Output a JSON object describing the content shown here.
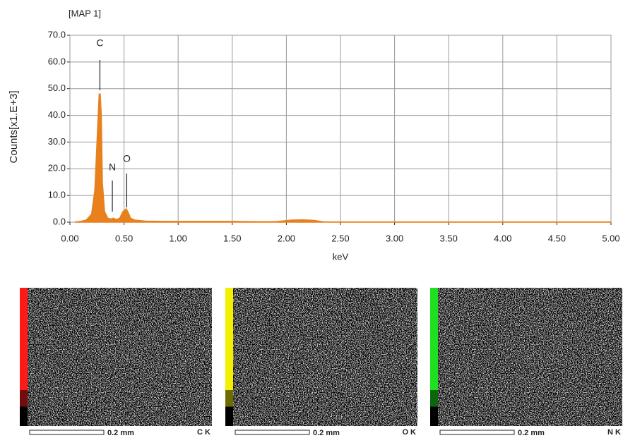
{
  "chart_data": {
    "type": "area",
    "title": "[MAP 1]",
    "x_label": "keV",
    "y_label": "Counts[x1.E+3]",
    "color": "#e8801e",
    "grid": true,
    "x": [
      0.05,
      0.1,
      0.15,
      0.2,
      0.23,
      0.25,
      0.27,
      0.28,
      0.29,
      0.3,
      0.32,
      0.35,
      0.38,
      0.4,
      0.43,
      0.46,
      0.49,
      0.52,
      0.54,
      0.56,
      0.6,
      0.7,
      0.9,
      1.2,
      1.5,
      1.7,
      1.9,
      2.05,
      2.15,
      2.25,
      2.35,
      3.0,
      4.0,
      5.0
    ],
    "values": [
      0.1,
      0.3,
      0.8,
      3,
      12,
      30,
      48,
      48,
      40,
      15,
      4,
      1.5,
      1.2,
      1.5,
      1,
      1.5,
      4,
      5,
      3.5,
      1.5,
      0.8,
      0.4,
      0.3,
      0.3,
      0.3,
      0.2,
      0.2,
      0.8,
      0.9,
      0.7,
      0.1,
      0.1,
      0.1,
      0.1
    ],
    "xlim": [
      0,
      5
    ],
    "ylim": [
      0,
      70
    ],
    "xticks": [
      {
        "value": 0,
        "label": "0.00"
      },
      {
        "value": 0.5,
        "label": "0.50"
      },
      {
        "value": 1,
        "label": "1.00"
      },
      {
        "value": 1.5,
        "label": "1.50"
      },
      {
        "value": 2,
        "label": "2.00"
      },
      {
        "value": 2.5,
        "label": "2.50"
      },
      {
        "value": 3,
        "label": "3.00"
      },
      {
        "value": 3.5,
        "label": "3.50"
      },
      {
        "value": 4,
        "label": "4.00"
      },
      {
        "value": 4.5,
        "label": "4.50"
      },
      {
        "value": 5,
        "label": "5.00"
      }
    ],
    "yticks": [
      {
        "value": 0,
        "label": "0.0"
      },
      {
        "value": 10,
        "label": "10.0"
      },
      {
        "value": 20,
        "label": "20.0"
      },
      {
        "value": 30,
        "label": "30.0"
      },
      {
        "value": 40,
        "label": "40.0"
      },
      {
        "value": 50,
        "label": "50.0"
      },
      {
        "value": 60,
        "label": "60.0"
      },
      {
        "value": 70,
        "label": "70.0"
      }
    ],
    "peaks": [
      {
        "label": "C",
        "x": 0.277
      },
      {
        "label": "N",
        "x": 0.392
      },
      {
        "label": "O",
        "x": 0.525
      }
    ]
  },
  "maps": [
    {
      "label": "C K",
      "scale_bar": "0.2 mm",
      "color": "#ff1a1a"
    },
    {
      "label": "O K",
      "scale_bar": "0.2 mm",
      "color": "#f0f000"
    },
    {
      "label": "N K",
      "scale_bar": "0.2 mm",
      "color": "#1ee01e"
    }
  ]
}
